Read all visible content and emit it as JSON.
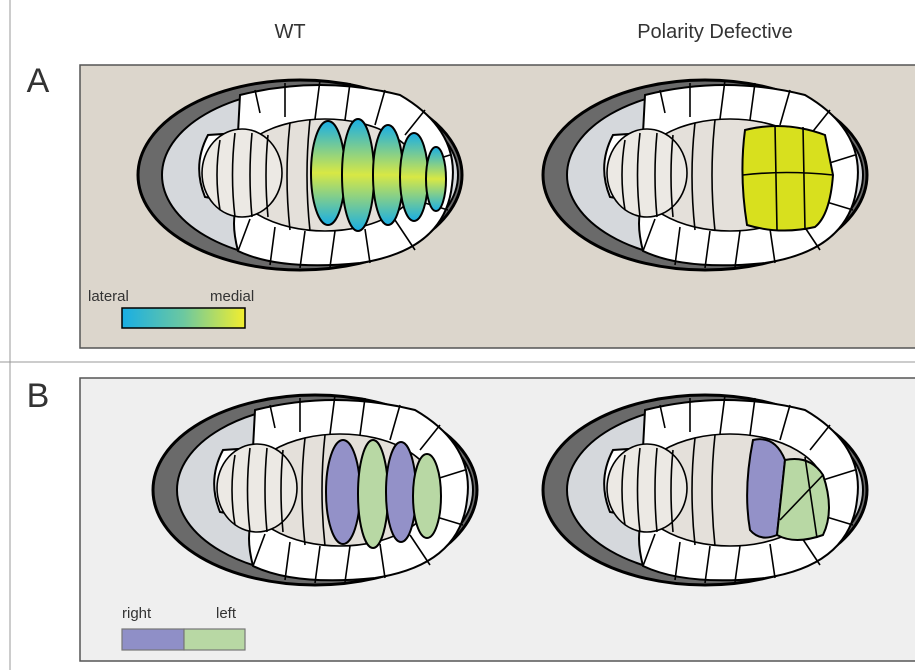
{
  "columns": [
    "WT",
    "Polarity Defective"
  ],
  "panels": [
    {
      "label": "A",
      "legend": {
        "start": "lateral",
        "end": "medial"
      }
    },
    {
      "label": "B",
      "legend": {
        "start": "right",
        "end": "left"
      }
    }
  ]
}
